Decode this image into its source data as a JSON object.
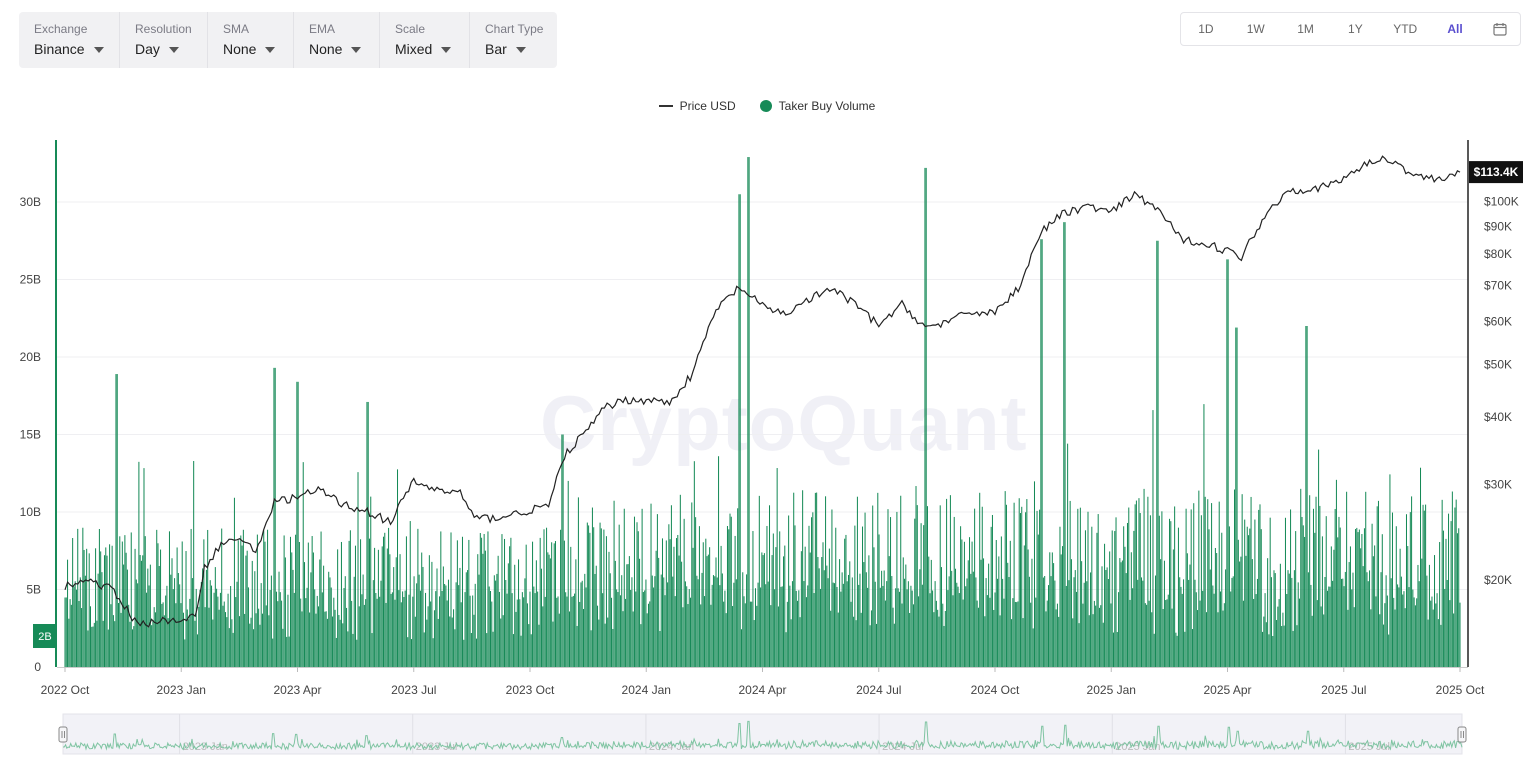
{
  "toolbar": {
    "exchange": {
      "label": "Exchange",
      "value": "Binance"
    },
    "resolution": {
      "label": "Resolution",
      "value": "Day"
    },
    "sma": {
      "label": "SMA",
      "value": "None"
    },
    "ema": {
      "label": "EMA",
      "value": "None"
    },
    "scale": {
      "label": "Scale",
      "value": "Mixed"
    },
    "chart_type": {
      "label": "Chart Type",
      "value": "Bar"
    }
  },
  "ranges": [
    "1D",
    "1W",
    "1M",
    "1Y",
    "YTD",
    "All"
  ],
  "active_range": "All",
  "watermark": "CryptoQuant",
  "colors": {
    "volume": "#168a57",
    "price": "#222222",
    "active": "#5a4fcf"
  },
  "chart_data": {
    "type": "bar",
    "legend_position": "top-center",
    "series": [
      {
        "name": "Price USD",
        "type": "line",
        "axis": "right",
        "scale": "log",
        "unit": "USD"
      },
      {
        "name": "Taker Buy Volume",
        "type": "bar",
        "axis": "left",
        "unit": "USD"
      }
    ],
    "x_ticks": [
      "2022 Oct",
      "2023 Jan",
      "2023 Apr",
      "2023 Jul",
      "2023 Oct",
      "2024 Jan",
      "2024 Apr",
      "2024 Jul",
      "2024 Oct",
      "2025 Jan",
      "2025 Apr",
      "2025 Jul",
      "2025 Oct"
    ],
    "navigator_ticks": [
      "2023 Jan",
      "2023 Jul",
      "2024 Jan",
      "2024 Jul",
      "2025 Jan",
      "2025 Jul"
    ],
    "y_left": {
      "ticks": [
        "0",
        "5B",
        "10B",
        "15B",
        "20B",
        "25B",
        "30B"
      ],
      "values": [
        0,
        5,
        10,
        15,
        20,
        25,
        30
      ],
      "range": [
        0,
        34
      ],
      "unit": "B"
    },
    "y_right": {
      "ticks": [
        "$20K",
        "$30K",
        "$40K",
        "$50K",
        "$60K",
        "$70K",
        "$80K",
        "$90K",
        "$100K"
      ],
      "values": [
        20,
        30,
        40,
        50,
        60,
        70,
        80,
        90,
        100
      ],
      "range": [
        13.8,
        130
      ],
      "unit": "K",
      "scale": "log"
    },
    "current_price_label": "$113.4K",
    "current_price": 113.4,
    "current_volume_label": "2B",
    "current_volume": 2,
    "price": {
      "t": [
        2022.75,
        2022.8,
        2022.85,
        2022.9,
        2022.93,
        2022.96,
        2023.0,
        2023.03,
        2023.05,
        2023.08,
        2023.12,
        2023.16,
        2023.2,
        2023.25,
        2023.3,
        2023.35,
        2023.4,
        2023.45,
        2023.5,
        2023.55,
        2023.6,
        2023.63,
        2023.67,
        2023.72,
        2023.76,
        2023.79,
        2023.83,
        2023.87,
        2023.91,
        2023.95,
        2024.0,
        2024.05,
        2024.1,
        2024.15,
        2024.2,
        2024.25,
        2024.3,
        2024.35,
        2024.4,
        2024.45,
        2024.5,
        2024.55,
        2024.6,
        2024.65,
        2024.7,
        2024.75,
        2024.8,
        2024.85,
        2024.9,
        2024.95,
        2025.0,
        2025.05,
        2025.1,
        2025.15,
        2025.2,
        2025.25,
        2025.28,
        2025.33,
        2025.38,
        2025.45,
        2025.5,
        2025.55,
        2025.6,
        2025.65,
        2025.7,
        2025.75
      ],
      "v": [
        19.5,
        20.0,
        19.2,
        16.8,
        16.6,
        16.9,
        16.6,
        17.2,
        21.0,
        23.0,
        24.0,
        22.5,
        27.8,
        28.5,
        29.3,
        27.5,
        26.8,
        25.5,
        30.4,
        29.3,
        29.0,
        26.0,
        26.0,
        26.5,
        27.0,
        27.5,
        34.5,
        37.5,
        41.5,
        43.0,
        43.0,
        42.5,
        48.0,
        63.0,
        69.5,
        64.0,
        62.0,
        66.0,
        69.0,
        64.5,
        59.0,
        64.5,
        58.5,
        60.0,
        62.5,
        62.5,
        69.0,
        88.0,
        95.5,
        98.0,
        95.5,
        103.0,
        97.0,
        85.0,
        84.0,
        81.0,
        79.0,
        94.0,
        105.0,
        106.0,
        110.0,
        118.0,
        120.0,
        112.0,
        110.0,
        113.4
      ]
    },
    "volume": {
      "note": "daily taker buy volume, values in billions USD",
      "peaks": [
        {
          "t": 2022.86,
          "v": 18.9
        },
        {
          "t": 2023.2,
          "v": 19.3
        },
        {
          "t": 2023.25,
          "v": 18.4
        },
        {
          "t": 2023.4,
          "v": 17.1
        },
        {
          "t": 2023.82,
          "v": 15.0
        },
        {
          "t": 2024.2,
          "v": 30.5
        },
        {
          "t": 2024.22,
          "v": 32.9
        },
        {
          "t": 2024.6,
          "v": 32.2
        },
        {
          "t": 2024.85,
          "v": 27.6
        },
        {
          "t": 2024.9,
          "v": 28.7
        },
        {
          "t": 2025.1,
          "v": 27.5
        },
        {
          "t": 2025.25,
          "v": 26.3
        },
        {
          "t": 2025.27,
          "v": 21.9
        },
        {
          "t": 2025.42,
          "v": 22.0
        }
      ],
      "typical_range": [
        2,
        12
      ]
    }
  }
}
